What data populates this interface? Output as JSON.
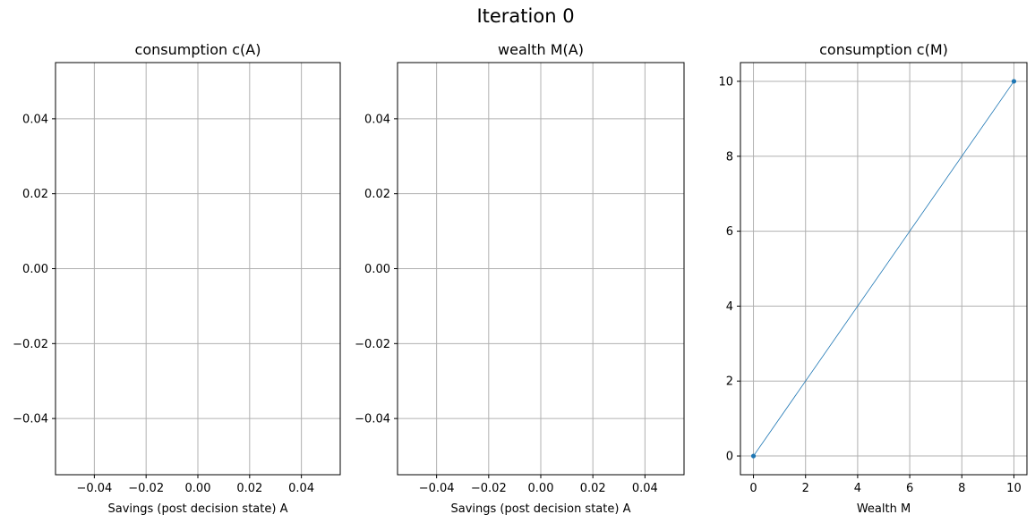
{
  "figure_title": "Iteration 0",
  "chart_data": [
    {
      "type": "line",
      "title": "consumption c(A)",
      "xlabel": "Savings (post decision state) A",
      "ylabel": "",
      "xlim": [
        -0.055,
        0.055
      ],
      "ylim": [
        -0.055,
        0.055
      ],
      "xticks": [
        -0.04,
        -0.02,
        0.0,
        0.02,
        0.04
      ],
      "xtick_labels": [
        "−0.04",
        "−0.02",
        "0.00",
        "0.02",
        "0.04"
      ],
      "yticks": [
        0.04,
        0.02,
        0.0,
        -0.02,
        -0.04
      ],
      "ytick_labels": [
        "0.04",
        "0.02",
        "0.00",
        "−0.02",
        "−0.04"
      ],
      "grid": true,
      "series": [
        {
          "x": [],
          "y": []
        }
      ]
    },
    {
      "type": "line",
      "title": "wealth M(A)",
      "xlabel": "Savings (post decision state) A",
      "ylabel": "",
      "xlim": [
        -0.055,
        0.055
      ],
      "ylim": [
        -0.055,
        0.055
      ],
      "xticks": [
        -0.04,
        -0.02,
        0.0,
        0.02,
        0.04
      ],
      "xtick_labels": [
        "−0.04",
        "−0.02",
        "0.00",
        "0.02",
        "0.04"
      ],
      "yticks": [
        0.04,
        0.02,
        0.0,
        -0.02,
        -0.04
      ],
      "ytick_labels": [
        "0.04",
        "0.02",
        "0.00",
        "−0.02",
        "−0.04"
      ],
      "grid": true,
      "series": [
        {
          "x": [],
          "y": []
        }
      ]
    },
    {
      "type": "line",
      "title": "consumption c(M)",
      "xlabel": "Wealth M",
      "ylabel": "",
      "xlim": [
        -0.5,
        10.5
      ],
      "ylim": [
        -0.5,
        10.5
      ],
      "xticks": [
        0,
        2,
        4,
        6,
        8,
        10
      ],
      "xtick_labels": [
        "0",
        "2",
        "4",
        "6",
        "8",
        "10"
      ],
      "yticks": [
        10,
        8,
        6,
        4,
        2,
        0
      ],
      "ytick_labels": [
        "10",
        "8",
        "6",
        "4",
        "2",
        "0"
      ],
      "grid": true,
      "series": [
        {
          "x": [
            0,
            10
          ],
          "y": [
            0,
            10
          ],
          "color": "#1f77b4",
          "marker": "o"
        }
      ]
    }
  ]
}
